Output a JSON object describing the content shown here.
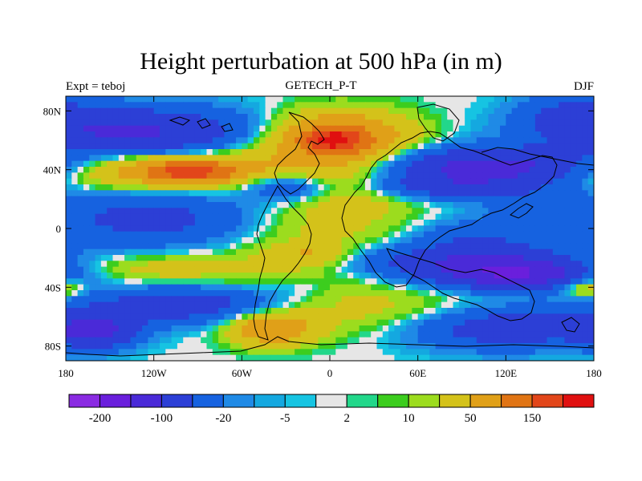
{
  "chart_data": {
    "type": "heatmap",
    "title": "Height perturbation at 500 hPa (in m)",
    "left_subtitle": "Expt = teboj",
    "center_subtitle": "GETECH_P-T",
    "right_subtitle": "DJF",
    "x": {
      "range": [
        -180,
        180
      ],
      "ticks": [
        -180,
        -120,
        -60,
        0,
        60,
        120,
        180
      ],
      "tick_labels": [
        "180",
        "120W",
        "60W",
        "0",
        "60E",
        "120E",
        "180"
      ]
    },
    "y": {
      "range": [
        -90,
        90
      ],
      "ticks": [
        80,
        40,
        0,
        -40,
        -80
      ],
      "tick_labels": [
        "80N",
        "40N",
        "0",
        "40S",
        "80S"
      ]
    },
    "colorbar": {
      "levels": [
        -300,
        -200,
        -150,
        -100,
        -50,
        -20,
        -10,
        -5,
        -2,
        2,
        5,
        10,
        20,
        50,
        100,
        150,
        200
      ],
      "colors": [
        "#8a2be2",
        "#6a1fdc",
        "#4a2ad8",
        "#2c3fd6",
        "#1662e0",
        "#1f8ae6",
        "#14a8e0",
        "#16c4e2",
        "#e6e6e6",
        "#22d78a",
        "#3ccd1e",
        "#9cdc1e",
        "#d4c21a",
        "#e0a018",
        "#e07414",
        "#e2461a",
        "#e01010"
      ],
      "labels": [
        {
          "level": -200,
          "text": "-200"
        },
        {
          "level": -100,
          "text": "-100"
        },
        {
          "level": -20,
          "text": "-20"
        },
        {
          "level": -5,
          "text": "-5"
        },
        {
          "level": 2,
          "text": "2"
        },
        {
          "level": 10,
          "text": "10"
        },
        {
          "level": 50,
          "text": "50"
        },
        {
          "level": 150,
          "text": "150"
        }
      ]
    },
    "field_features": [
      {
        "lon": -130,
        "lat": 65,
        "sx": 55,
        "sy": 12,
        "value": -110
      },
      {
        "lon": 165,
        "lat": 78,
        "sx": 25,
        "sy": 10,
        "value": -50
      },
      {
        "lon": -130,
        "lat": 40,
        "sx": 60,
        "sy": 10,
        "value": 80
      },
      {
        "lon": -95,
        "lat": 39,
        "sx": 22,
        "sy": 5,
        "value": 130
      },
      {
        "lon": 8,
        "lat": 62,
        "sx": 32,
        "sy": 12,
        "value": 105
      },
      {
        "lon": 2,
        "lat": 60,
        "sx": 14,
        "sy": 6,
        "value": 120
      },
      {
        "lon": -25,
        "lat": 48,
        "sx": 40,
        "sy": 16,
        "value": 25
      },
      {
        "lon": -30,
        "lat": 28,
        "sx": 22,
        "sy": 7,
        "value": -60
      },
      {
        "lon": 115,
        "lat": 42,
        "sx": 55,
        "sy": 9,
        "value": -130
      },
      {
        "lon": 75,
        "lat": 28,
        "sx": 45,
        "sy": 6,
        "value": -60
      },
      {
        "lon": 140,
        "lat": 15,
        "sx": 25,
        "sy": 8,
        "value": -30
      },
      {
        "lon": -120,
        "lat": 7,
        "sx": 55,
        "sy": 14,
        "value": -65
      },
      {
        "lon": -12,
        "lat": 0,
        "sx": 45,
        "sy": 22,
        "value": 30
      },
      {
        "lon": 20,
        "lat": 28,
        "sx": 28,
        "sy": 12,
        "value": 30
      },
      {
        "lon": -15,
        "lat": -18,
        "sx": 20,
        "sy": 5,
        "value": 40
      },
      {
        "lon": -130,
        "lat": -28,
        "sx": 65,
        "sy": 8,
        "value": 35
      },
      {
        "lon": 95,
        "lat": -22,
        "sx": 55,
        "sy": 8,
        "value": -90
      },
      {
        "lon": 130,
        "lat": -32,
        "sx": 40,
        "sy": 7,
        "value": -130
      },
      {
        "lon": 100,
        "lat": -5,
        "sx": 30,
        "sy": 8,
        "value": -40
      },
      {
        "lon": -100,
        "lat": -52,
        "sx": 50,
        "sy": 9,
        "value": -80
      },
      {
        "lon": -160,
        "lat": -70,
        "sx": 20,
        "sy": 8,
        "value": -110
      },
      {
        "lon": 120,
        "lat": -68,
        "sx": 45,
        "sy": 10,
        "value": -80
      },
      {
        "lon": -40,
        "lat": -68,
        "sx": 20,
        "sy": 8,
        "value": 90
      },
      {
        "lon": 20,
        "lat": -55,
        "sx": 55,
        "sy": 12,
        "value": 30
      },
      {
        "lon": -20,
        "lat": -40,
        "sx": 14,
        "sy": 4,
        "value": -10
      },
      {
        "lon": 175,
        "lat": -40,
        "sx": 12,
        "sy": 5,
        "value": 60
      }
    ]
  }
}
